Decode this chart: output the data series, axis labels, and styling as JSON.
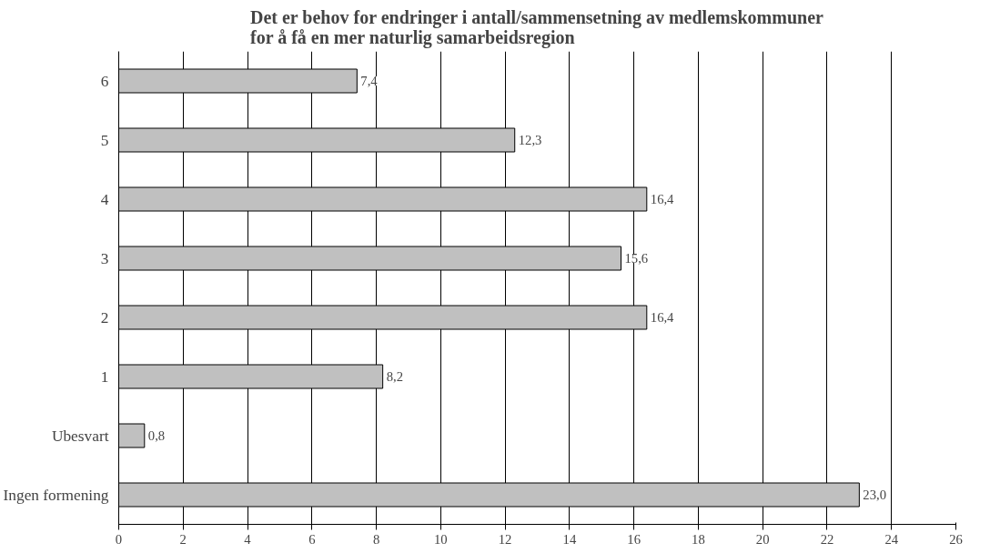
{
  "chart_data": {
    "type": "bar",
    "orientation": "horizontal",
    "title": "Det er behov for endringer i antall/sammensetning av medlemskommuner\nfor å få en mer naturlig samarbeidsregion",
    "categories": [
      "6",
      "5",
      "4",
      "3",
      "2",
      "1",
      "Ubesvart",
      "Ingen formening"
    ],
    "values": [
      7.4,
      12.3,
      16.4,
      15.6,
      16.4,
      8.2,
      0.8,
      23.0
    ],
    "value_labels": [
      "7,4",
      "12,3",
      "16,4",
      "15,6",
      "16,4",
      "8,2",
      "0,8",
      "23,0"
    ],
    "color": "#c0c0c0",
    "xlim": [
      0,
      26
    ],
    "xticks": [
      0,
      2,
      4,
      6,
      8,
      10,
      12,
      14,
      16,
      18,
      20,
      22,
      24,
      26
    ],
    "grid": "x"
  }
}
